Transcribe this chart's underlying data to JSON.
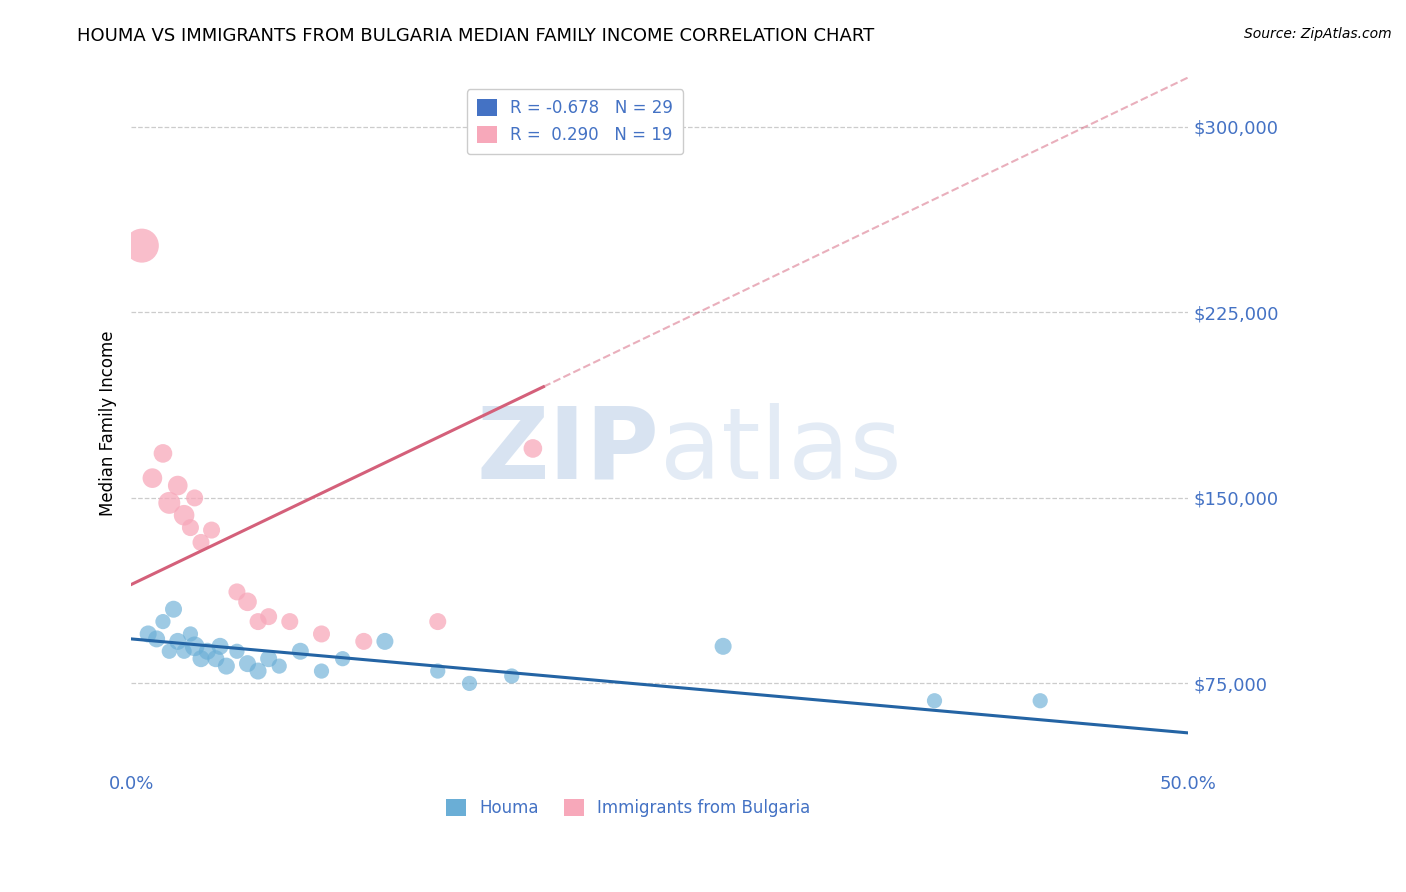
{
  "title": "HOUMA VS IMMIGRANTS FROM BULGARIA MEDIAN FAMILY INCOME CORRELATION CHART",
  "source": "Source: ZipAtlas.com",
  "ylabel": "Median Family Income",
  "xlim": [
    0.0,
    0.5
  ],
  "ylim": [
    40000,
    320000
  ],
  "yticks": [
    75000,
    150000,
    225000,
    300000
  ],
  "ytick_labels": [
    "$75,000",
    "$150,000",
    "$225,000",
    "$300,000"
  ],
  "xticks": [
    0.0,
    0.125,
    0.25,
    0.375,
    0.5
  ],
  "xtick_labels": [
    "0.0%",
    "",
    "",
    "",
    "50.0%"
  ],
  "watermark_zip": "ZIP",
  "watermark_atlas": "atlas",
  "houma_color": "#6aaed6",
  "bulgaria_color": "#f7a8ba",
  "bg_color": "#ffffff",
  "grid_color": "#cccccc",
  "grid_style": "--",
  "houma_line_color": "#2464a4",
  "bulgaria_line_color": "#d4607a",
  "tick_label_color": "#4472c4",
  "legend_blue_color": "#4472c4",
  "legend_pink_color": "#f7a8ba",
  "houma_points": [
    [
      0.008,
      95000
    ],
    [
      0.012,
      93000
    ],
    [
      0.015,
      100000
    ],
    [
      0.018,
      88000
    ],
    [
      0.02,
      105000
    ],
    [
      0.022,
      92000
    ],
    [
      0.025,
      88000
    ],
    [
      0.028,
      95000
    ],
    [
      0.03,
      90000
    ],
    [
      0.033,
      85000
    ],
    [
      0.036,
      88000
    ],
    [
      0.04,
      85000
    ],
    [
      0.042,
      90000
    ],
    [
      0.045,
      82000
    ],
    [
      0.05,
      88000
    ],
    [
      0.055,
      83000
    ],
    [
      0.06,
      80000
    ],
    [
      0.065,
      85000
    ],
    [
      0.07,
      82000
    ],
    [
      0.08,
      88000
    ],
    [
      0.09,
      80000
    ],
    [
      0.1,
      85000
    ],
    [
      0.12,
      92000
    ],
    [
      0.145,
      80000
    ],
    [
      0.16,
      75000
    ],
    [
      0.18,
      78000
    ],
    [
      0.28,
      90000
    ],
    [
      0.38,
      68000
    ],
    [
      0.43,
      68000
    ]
  ],
  "houma_sizes": [
    150,
    150,
    120,
    120,
    150,
    150,
    120,
    120,
    200,
    150,
    150,
    150,
    150,
    150,
    120,
    150,
    150,
    150,
    120,
    150,
    120,
    120,
    150,
    120,
    120,
    120,
    150,
    120,
    120
  ],
  "bulgaria_points": [
    [
      0.005,
      252000
    ],
    [
      0.01,
      158000
    ],
    [
      0.015,
      168000
    ],
    [
      0.018,
      148000
    ],
    [
      0.022,
      155000
    ],
    [
      0.025,
      143000
    ],
    [
      0.028,
      138000
    ],
    [
      0.03,
      150000
    ],
    [
      0.033,
      132000
    ],
    [
      0.038,
      137000
    ],
    [
      0.05,
      112000
    ],
    [
      0.055,
      108000
    ],
    [
      0.06,
      100000
    ],
    [
      0.065,
      102000
    ],
    [
      0.075,
      100000
    ],
    [
      0.09,
      95000
    ],
    [
      0.11,
      92000
    ],
    [
      0.145,
      100000
    ],
    [
      0.19,
      170000
    ]
  ],
  "bulgaria_sizes": [
    600,
    200,
    180,
    250,
    200,
    220,
    150,
    150,
    150,
    150,
    150,
    180,
    150,
    150,
    150,
    150,
    150,
    150,
    180
  ]
}
